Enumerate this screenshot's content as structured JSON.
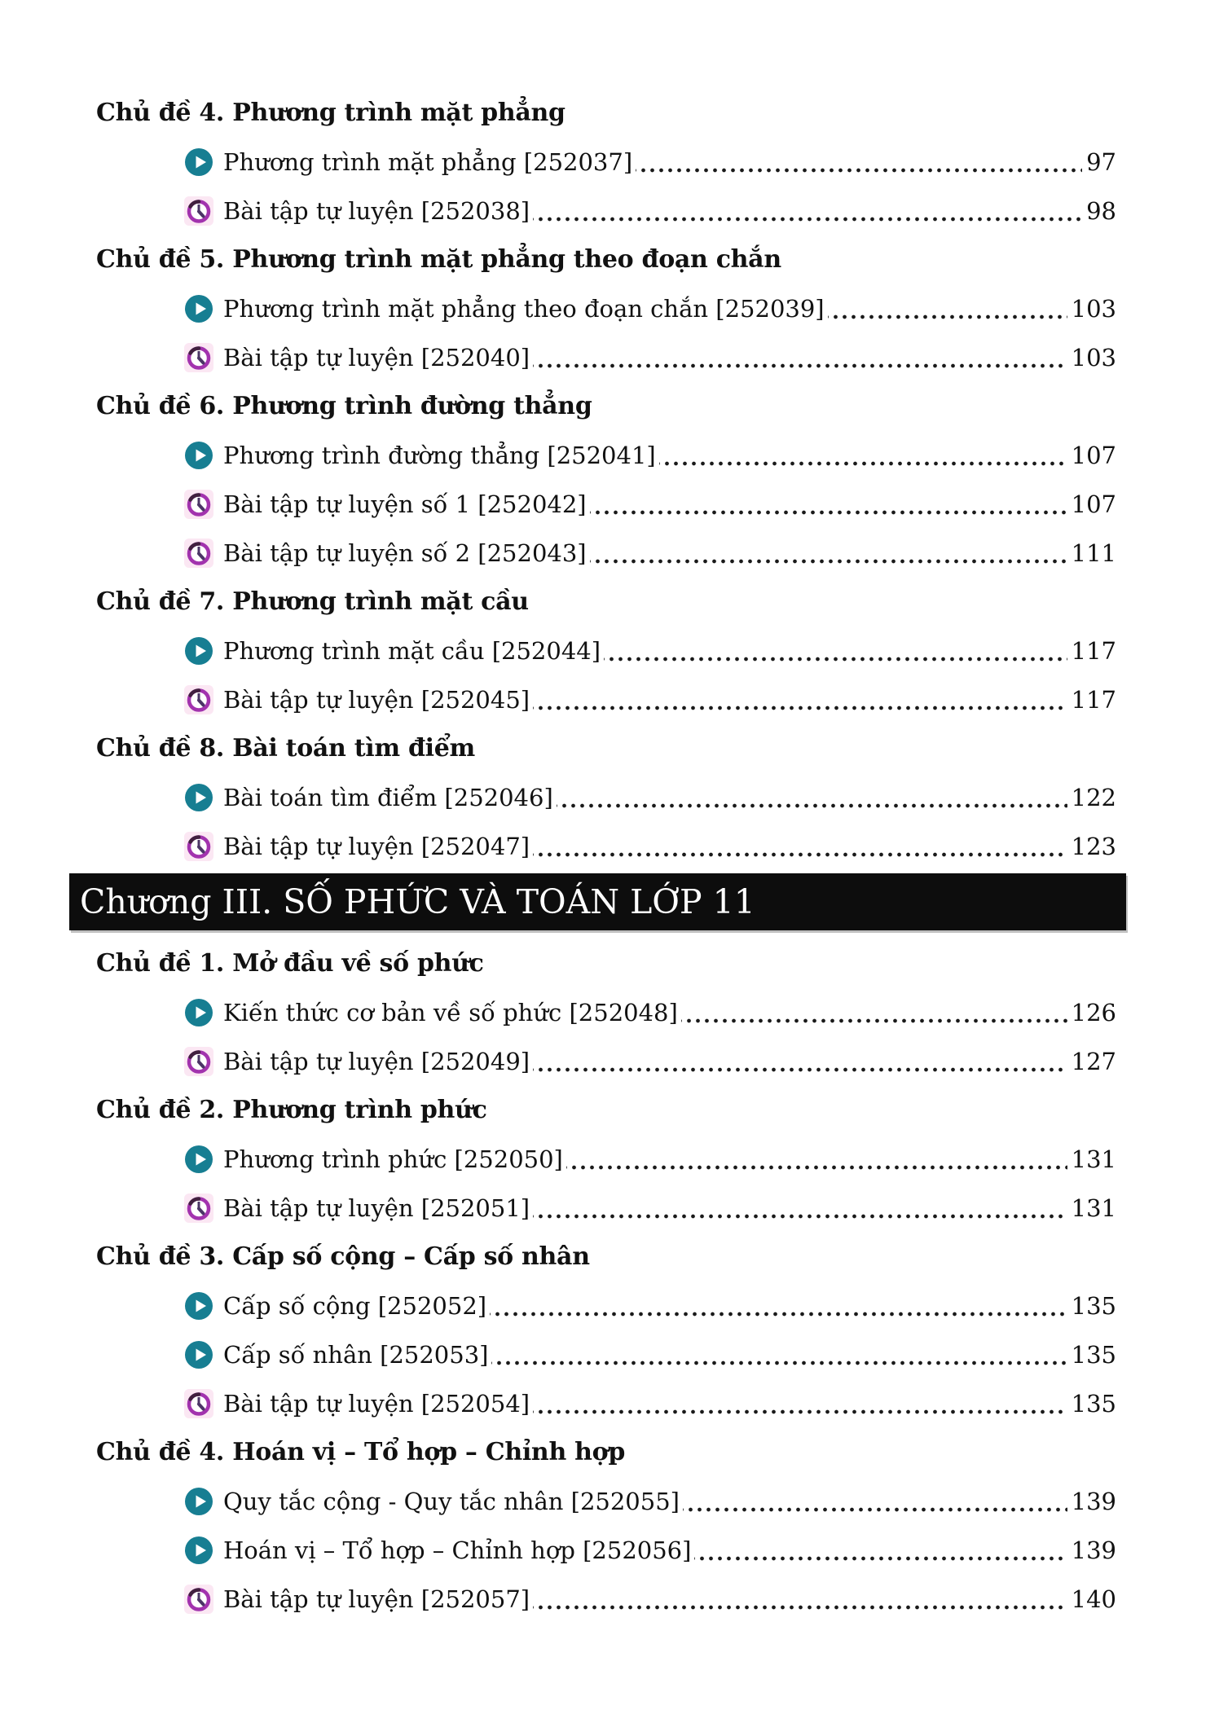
{
  "colors": {
    "text": "#111111",
    "play_icon": "#177e92",
    "play_triangle": "#ffffff",
    "clock_ring": "#a233ae",
    "clock_ring_shade": "#41203f",
    "clock_hands": "#4b3566",
    "clock_bg": "#fbe7f3",
    "banner_bg": "#0d0d0d",
    "banner_text": "#ffffff",
    "leader_dots": "#1a1a1a"
  },
  "icons": {
    "play": "play-circle-icon",
    "clock": "clock-icon"
  },
  "toc": {
    "groups": [
      {
        "banner": null,
        "sections": [
          {
            "heading": "Chủ đề 4. Phương trình mặt phẳng",
            "entries": [
              {
                "icon": "play",
                "label": "Phương trình mặt phẳng [252037]",
                "page": "97"
              },
              {
                "icon": "clock",
                "label": "Bài tập tự luyện [252038]",
                "page": "98"
              }
            ]
          },
          {
            "heading": "Chủ đề 5. Phương trình mặt phẳng theo đoạn chắn",
            "entries": [
              {
                "icon": "play",
                "label": "Phương trình mặt phẳng theo đoạn chắn [252039]",
                "page": "103"
              },
              {
                "icon": "clock",
                "label": "Bài tập tự luyện [252040]",
                "page": "103"
              }
            ]
          },
          {
            "heading": "Chủ đề 6. Phương trình đường thẳng",
            "entries": [
              {
                "icon": "play",
                "label": "Phương trình đường thẳng [252041]",
                "page": "107"
              },
              {
                "icon": "clock",
                "label": "Bài tập tự luyện số 1 [252042]",
                "page": "107"
              },
              {
                "icon": "clock",
                "label": "Bài tập tự luyện số 2 [252043]",
                "page": "111"
              }
            ]
          },
          {
            "heading": "Chủ đề 7. Phương trình mặt cầu",
            "entries": [
              {
                "icon": "play",
                "label": "Phương trình mặt cầu [252044]",
                "page": "117"
              },
              {
                "icon": "clock",
                "label": "Bài tập tự luyện [252045]",
                "page": "117"
              }
            ]
          },
          {
            "heading": "Chủ đề 8. Bài toán tìm điểm",
            "entries": [
              {
                "icon": "play",
                "label": "Bài toán tìm điểm [252046]",
                "page": "122"
              },
              {
                "icon": "clock",
                "label": "Bài tập tự luyện [252047]",
                "page": "123"
              }
            ]
          }
        ]
      },
      {
        "banner": "Chương III. SỐ PHỨC VÀ TOÁN LỚP 11",
        "sections": [
          {
            "heading": "Chủ đề 1. Mở đầu về số phức",
            "entries": [
              {
                "icon": "play",
                "label": "Kiến thức cơ bản về số phức [252048]",
                "page": "126"
              },
              {
                "icon": "clock",
                "label": "Bài tập tự luyện [252049]",
                "page": "127"
              }
            ]
          },
          {
            "heading": "Chủ đề 2. Phương trình phức",
            "entries": [
              {
                "icon": "play",
                "label": "Phương trình phức [252050]",
                "page": "131"
              },
              {
                "icon": "clock",
                "label": "Bài tập tự luyện [252051]",
                "page": "131"
              }
            ]
          },
          {
            "heading": "Chủ đề 3. Cấp số cộng – Cấp số nhân",
            "entries": [
              {
                "icon": "play",
                "label": "Cấp số cộng [252052]",
                "page": "135"
              },
              {
                "icon": "play",
                "label": "Cấp số nhân [252053]",
                "page": "135"
              },
              {
                "icon": "clock",
                "label": "Bài tập tự luyện [252054]",
                "page": "135"
              }
            ]
          },
          {
            "heading": "Chủ đề 4. Hoán vị – Tổ hợp – Chỉnh hợp",
            "entries": [
              {
                "icon": "play",
                "label": "Quy tắc cộng - Quy tắc nhân [252055]",
                "page": "139"
              },
              {
                "icon": "play",
                "label": "Hoán vị – Tổ hợp – Chỉnh hợp [252056]",
                "page": "139"
              },
              {
                "icon": "clock",
                "label": "Bài tập tự luyện [252057]",
                "page": "140"
              }
            ]
          }
        ]
      }
    ]
  }
}
